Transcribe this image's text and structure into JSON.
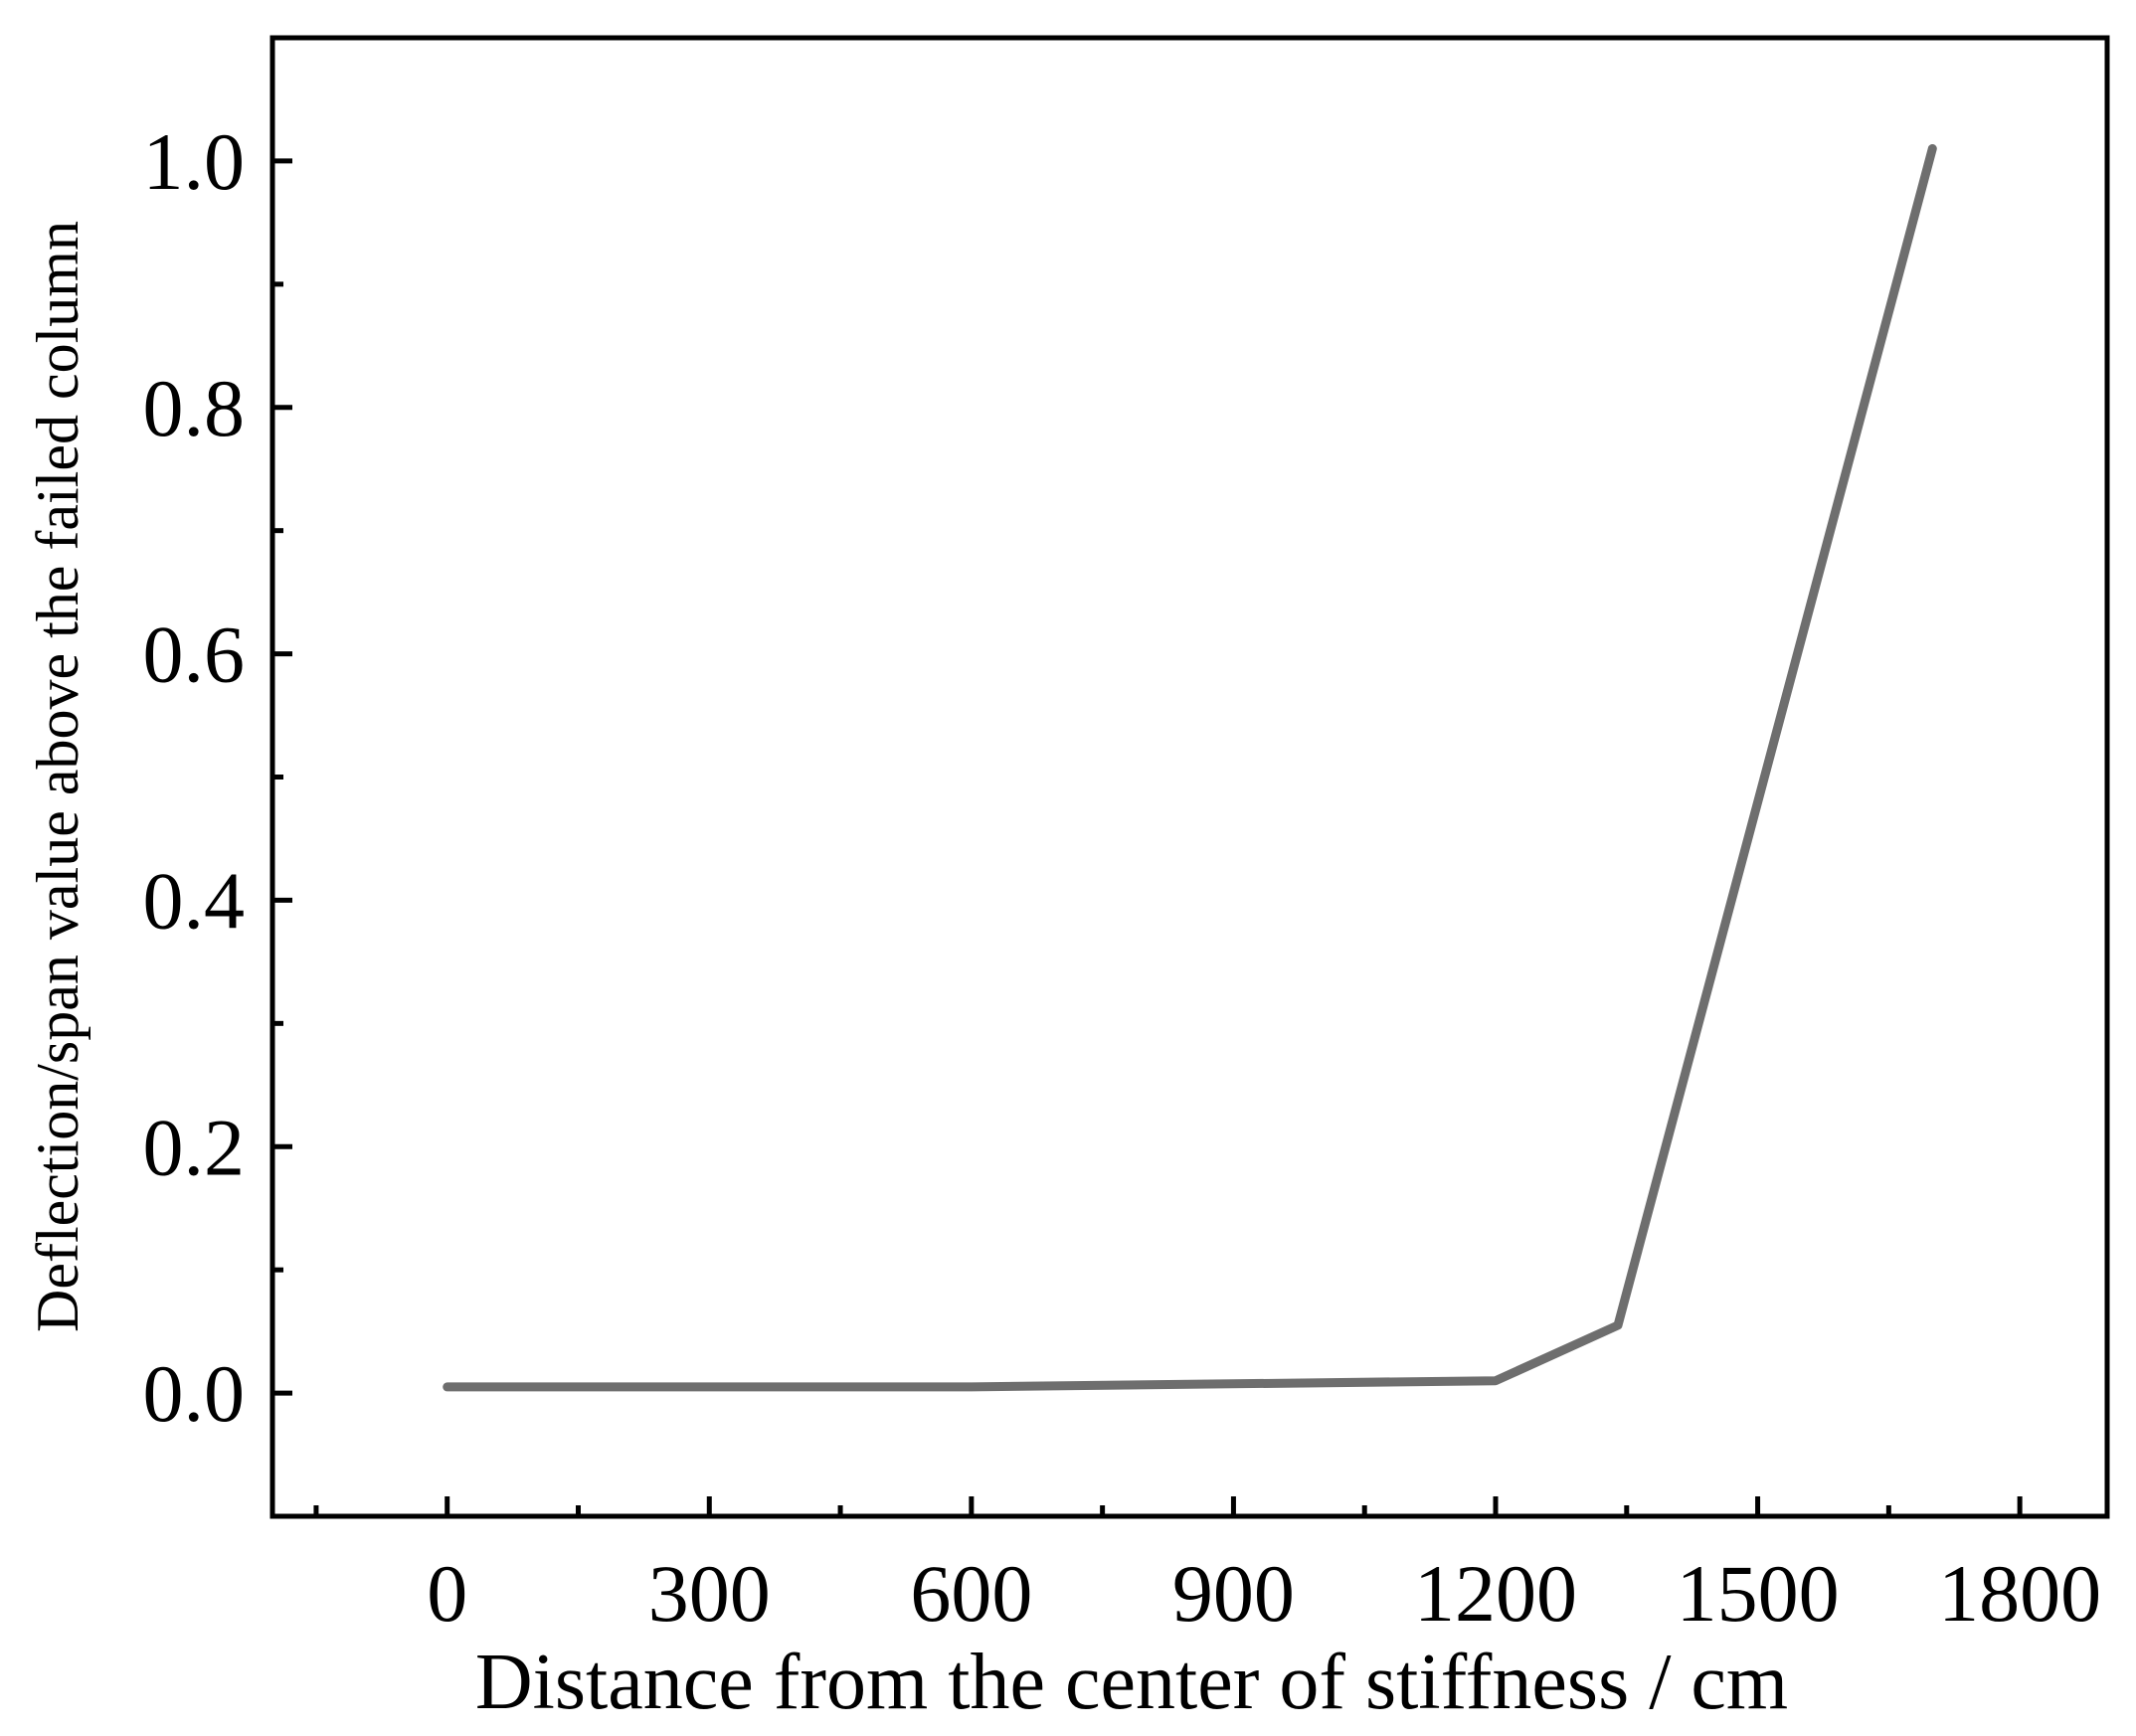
{
  "chart_data": {
    "type": "line",
    "x_label": "Distance from the center of stiffness / cm",
    "y_label": "Deflection/span value above the failed column",
    "x": [
      0,
      600,
      1200,
      1340,
      1700
    ],
    "series": [
      {
        "color": "#6e6e6e",
        "values": [
          0.005,
          0.005,
          0.01,
          0.055,
          1.01
        ]
      }
    ],
    "xlim": [
      -200,
      1900
    ],
    "xticks": [
      0,
      300,
      600,
      900,
      1200,
      1500,
      1800
    ],
    "ylim": [
      -0.1,
      1.1
    ],
    "yticks": [
      {
        "value": 0,
        "label": "0.0"
      },
      {
        "value": 0.2,
        "label": "0.2"
      },
      {
        "value": 0.4,
        "label": "0.4"
      },
      {
        "value": 0.6,
        "label": "0.6"
      },
      {
        "value": 0.8,
        "label": "0.8"
      },
      {
        "value": 1,
        "label": "1.0"
      }
    ]
  }
}
